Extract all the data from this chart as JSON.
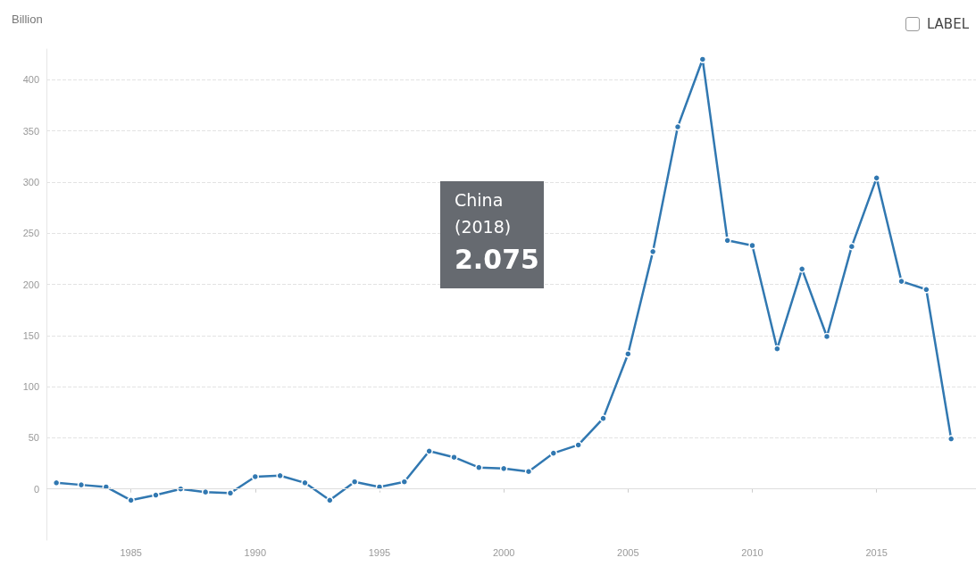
{
  "chart_data": {
    "type": "line",
    "ylabel": "Billion",
    "x": [
      1982,
      1983,
      1984,
      1985,
      1986,
      1987,
      1988,
      1989,
      1990,
      1991,
      1992,
      1993,
      1994,
      1995,
      1996,
      1997,
      1998,
      1999,
      2000,
      2001,
      2002,
      2003,
      2004,
      2005,
      2006,
      2007,
      2008,
      2009,
      2010,
      2011,
      2012,
      2013,
      2014,
      2015,
      2016,
      2017,
      2018
    ],
    "series": [
      {
        "color": "#3178b1",
        "values": [
          6,
          4,
          2,
          -11,
          -6,
          0,
          -3,
          -4,
          12,
          13,
          6,
          -11,
          7,
          2,
          7,
          37,
          31,
          21,
          20,
          17,
          35,
          43,
          69,
          132,
          232,
          354,
          420,
          243,
          238,
          137,
          215,
          149,
          237,
          304,
          203,
          195,
          49
        ]
      }
    ],
    "xlim": [
      1981.6,
      2019
    ],
    "xticks": [
      1985,
      1990,
      1995,
      2000,
      2005,
      2010,
      2015
    ],
    "ylim": [
      -50,
      430
    ],
    "yticks": [
      0,
      50,
      100,
      150,
      200,
      250,
      300,
      350,
      400
    ],
    "grid": "y",
    "marker": "circle",
    "line_style": "solid",
    "annotations": [
      "China",
      "(2018)",
      "2.075",
      "LABEL"
    ]
  }
}
